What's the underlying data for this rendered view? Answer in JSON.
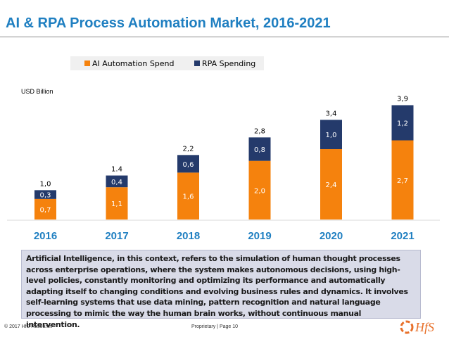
{
  "header": {
    "title": "AI & RPA Process Automation Market, 2016-2021"
  },
  "chart_data": {
    "type": "bar",
    "stacked": true,
    "categories": [
      "2016",
      "2017",
      "2018",
      "2019",
      "2020",
      "2021"
    ],
    "series": [
      {
        "name": "AI Automation Spend",
        "color": "#f5820d",
        "values": [
          0.7,
          1.1,
          1.6,
          2.0,
          2.4,
          2.7
        ],
        "labels": [
          "0,7",
          "1,1",
          "1,6",
          "2,0",
          "2,4",
          "2,7"
        ]
      },
      {
        "name": "RPA Spending",
        "color": "#243a6b",
        "values": [
          0.3,
          0.4,
          0.6,
          0.8,
          1.0,
          1.2
        ],
        "labels": [
          "0,3",
          "0,4",
          "0,6",
          "0,8",
          "1,0",
          "1,2"
        ]
      }
    ],
    "totals": [
      1.0,
      1.4,
      2.2,
      2.8,
      3.4,
      3.9
    ],
    "total_labels": [
      "1,0",
      "1.4",
      "2,2",
      "2,8",
      "3,4",
      "3,9"
    ],
    "ylabel": "USD Billion",
    "ylim": [
      0,
      4.2
    ],
    "grid": false,
    "legend": "top-center",
    "category_label_color": "#1f7fc1"
  },
  "note": {
    "text": "Artificial Intelligence, in this context, refers to the simulation of human thought processes across enterprise operations, where the system makes autonomous decisions, using high-level policies, constantly monitoring and optimizing its performance and automatically adapting itself to changing conditions and evolving business rules and dynamics. It involves self-learning systems that use data mining, pattern recognition and natural language processing to mimic the way the human brain works, without continuous manual intervention."
  },
  "footer": {
    "copyright": "© 2017 HfS Research",
    "page_label": "Proprietary | Page 10",
    "logo_text": "HfS",
    "logo_color": "#e8702a"
  }
}
